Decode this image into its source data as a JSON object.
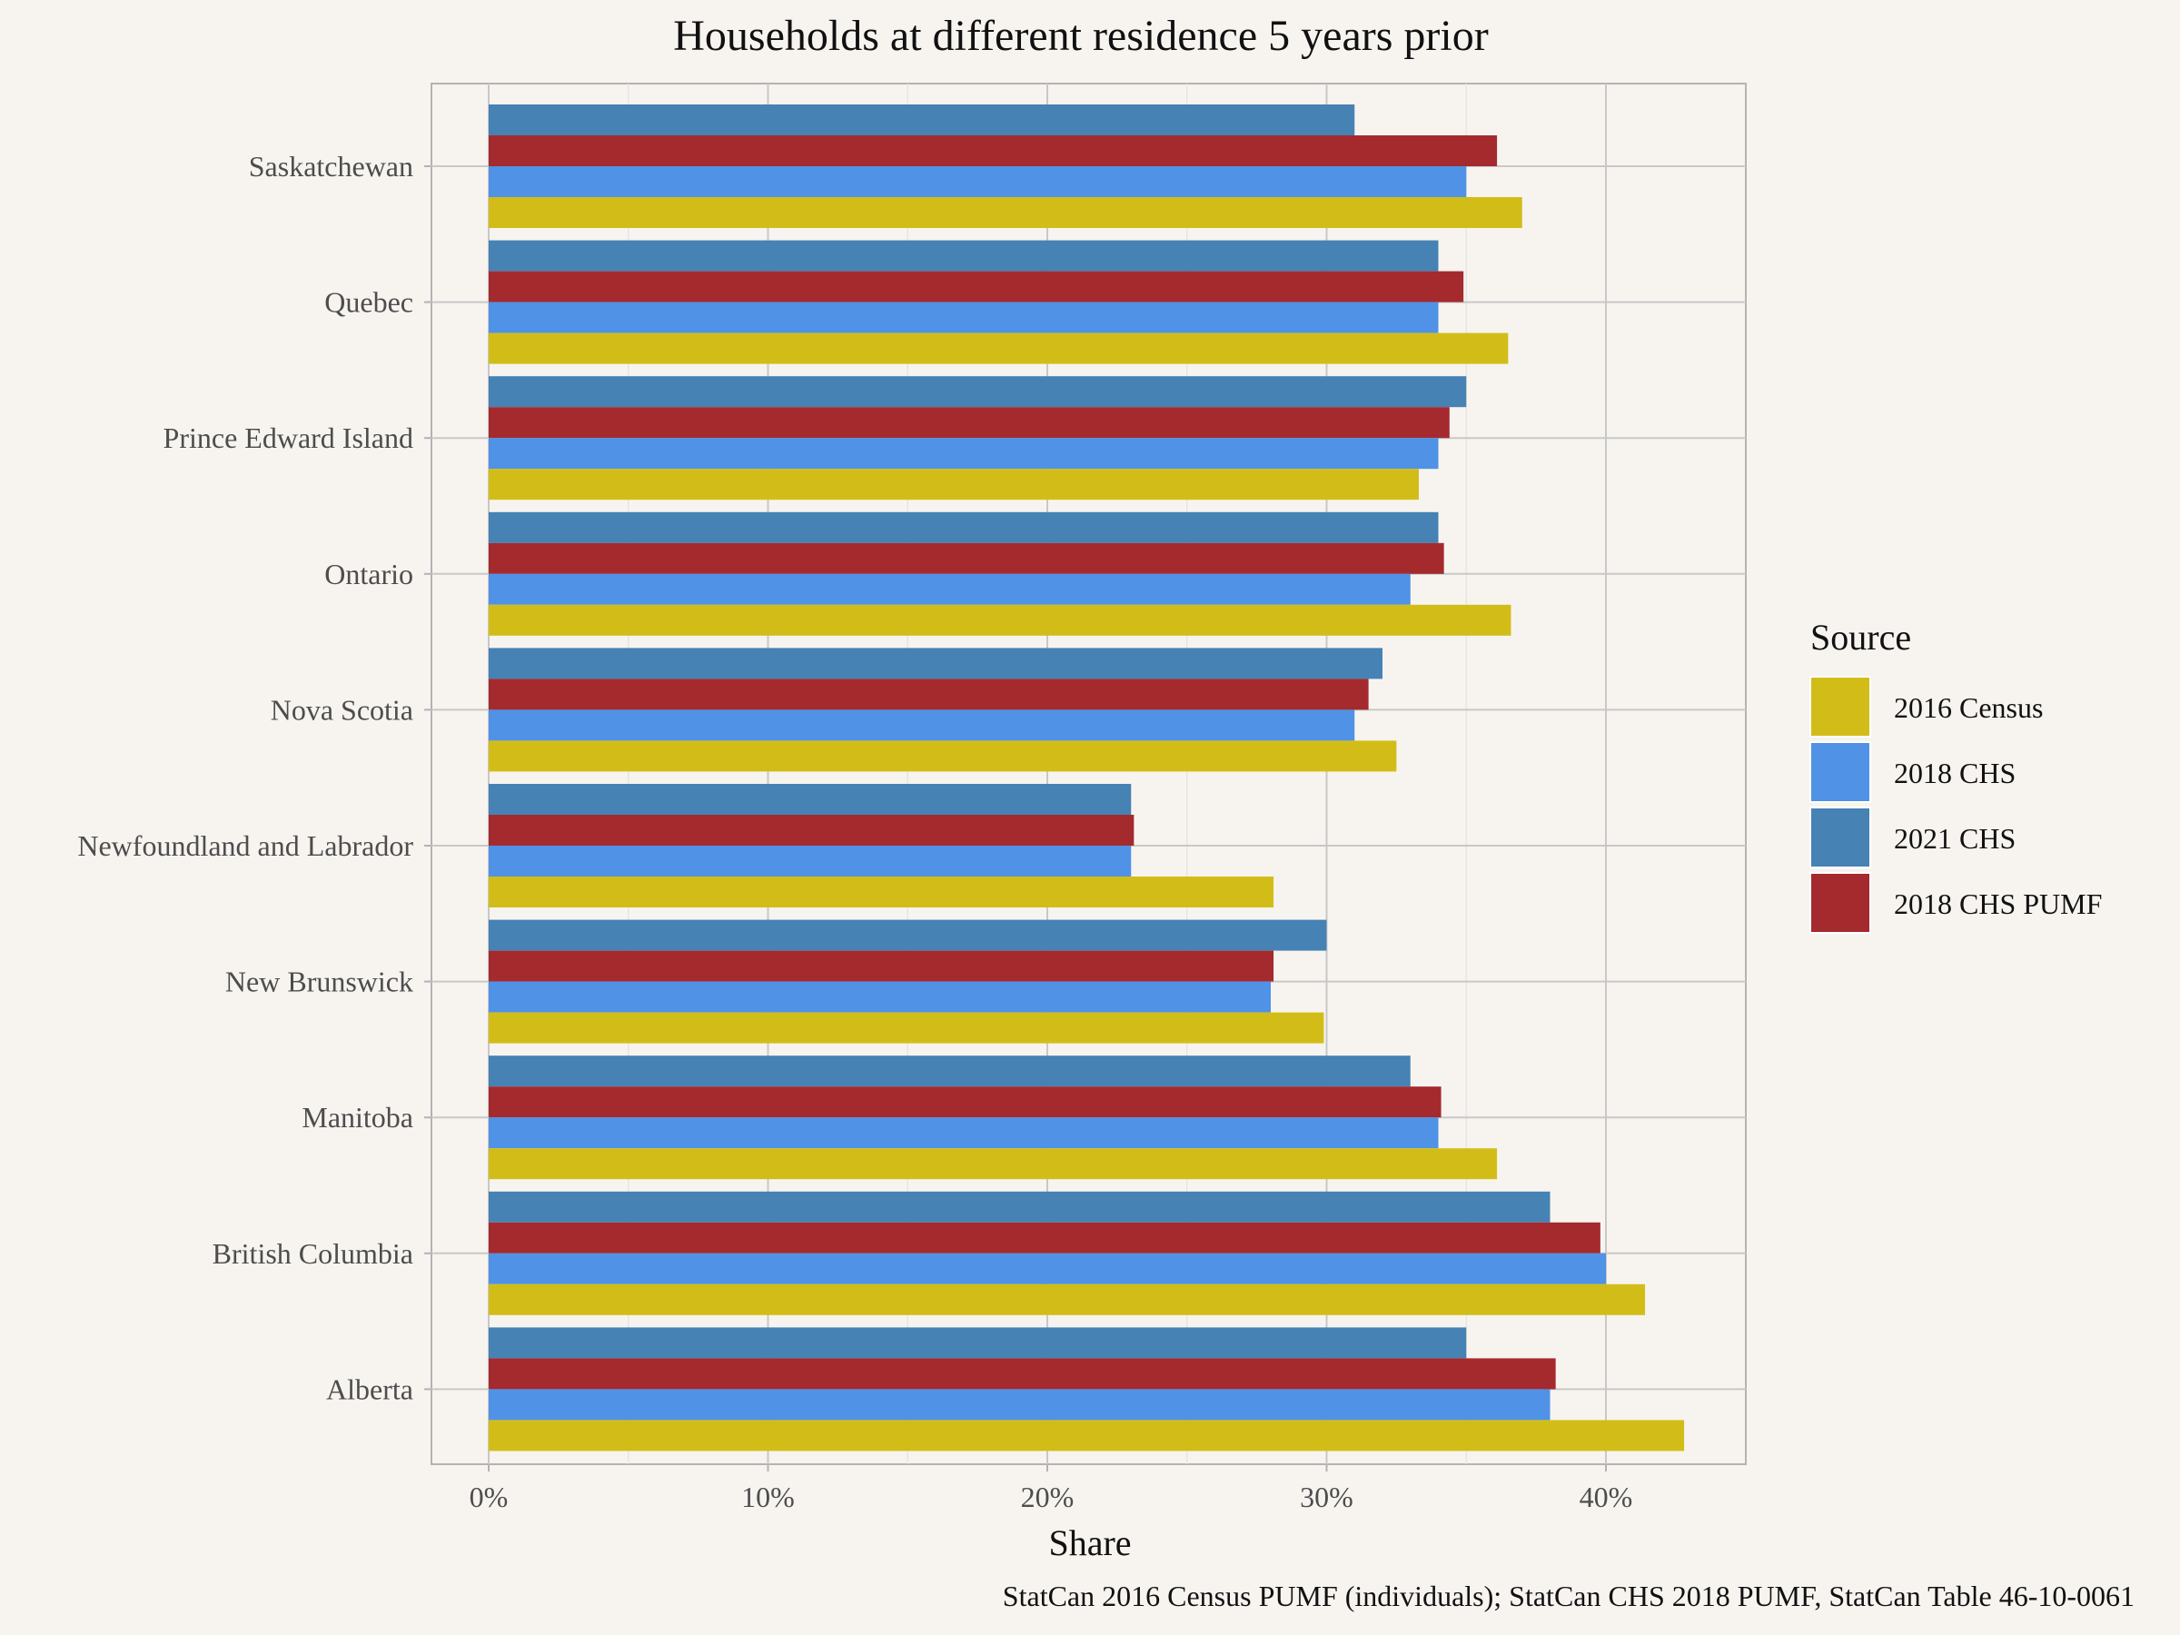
{
  "chart_data": {
    "type": "bar",
    "orientation": "horizontal",
    "title": "Households at different residence 5 years prior",
    "xlabel": "Share",
    "ylabel": "",
    "caption": "StatCan 2016 Census PUMF (individuals); StatCan CHS 2018 PUMF, StatCan Table 46-10-0061",
    "xlim": [
      0,
      0.43
    ],
    "x_ticks": [
      0,
      0.1,
      0.2,
      0.3,
      0.4
    ],
    "x_tick_labels": [
      "0%",
      "10%",
      "20%",
      "30%",
      "40%"
    ],
    "categories": [
      "Saskatchewan",
      "Quebec",
      "Prince Edward Island",
      "Ontario",
      "Nova Scotia",
      "Newfoundland and Labrador",
      "New Brunswick",
      "Manitoba",
      "British Columbia",
      "Alberta"
    ],
    "legend_title": "Source",
    "legend_position": "right",
    "grid": true,
    "series": [
      {
        "name": "2016 Census",
        "color": "#d2bd18",
        "values": [
          0.37,
          0.365,
          0.333,
          0.366,
          0.325,
          0.281,
          0.299,
          0.361,
          0.414,
          0.428
        ]
      },
      {
        "name": "2018 CHS",
        "color": "#4f92e6",
        "values": [
          0.35,
          0.34,
          0.34,
          0.33,
          0.31,
          0.23,
          0.28,
          0.34,
          0.4,
          0.38
        ]
      },
      {
        "name": "2021 CHS",
        "color": "#4682b4",
        "values": [
          0.31,
          0.34,
          0.35,
          0.34,
          0.32,
          0.23,
          0.3,
          0.33,
          0.38,
          0.35
        ]
      },
      {
        "name": "2018 CHS PUMF",
        "color": "#a42a2e",
        "values": [
          0.361,
          0.349,
          0.344,
          0.342,
          0.315,
          0.231,
          0.281,
          0.341,
          0.398,
          0.382
        ]
      }
    ],
    "stack_order_top_to_bottom": [
      "2021 CHS",
      "2018 CHS PUMF",
      "2018 CHS",
      "2016 Census"
    ],
    "panel_background": "#f7f4f0",
    "grid_color": "#c8c8c8"
  }
}
